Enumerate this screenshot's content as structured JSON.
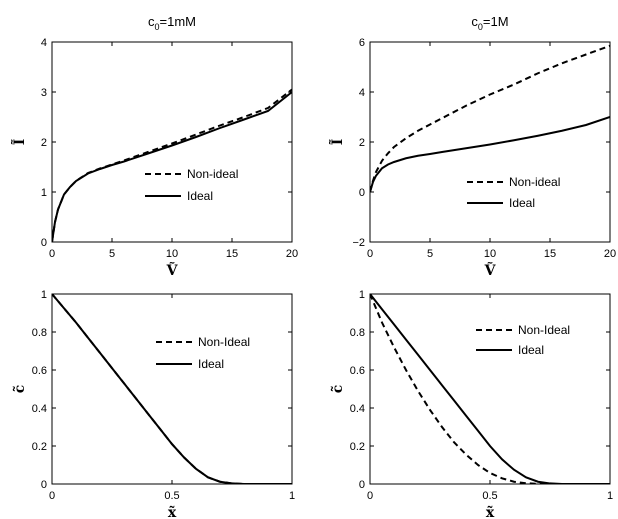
{
  "chart_data": [
    {
      "type": "line",
      "title": "c",
      "title_sub": "0",
      "title_suffix": "=1mM",
      "xlabel": "Ṽ",
      "ylabel": "Ĩ",
      "xlim": [
        0,
        20
      ],
      "ylim": [
        0,
        4
      ],
      "xticks": [
        "0",
        "5",
        "10",
        "15",
        "20"
      ],
      "yticks": [
        "0",
        "1",
        "2",
        "3",
        "4"
      ],
      "xtick_values": [
        0,
        5,
        10,
        15,
        20
      ],
      "ytick_values": [
        0,
        1,
        2,
        3,
        4
      ],
      "legend_position": "lower-right",
      "series": [
        {
          "name": "Non-ideal",
          "style": "dashed",
          "x": [
            0,
            0.25,
            0.5,
            1,
            1.5,
            2,
            3,
            4,
            5,
            6,
            8,
            10,
            12,
            14,
            16,
            18,
            20
          ],
          "y": [
            0,
            0.4,
            0.65,
            0.95,
            1.1,
            1.22,
            1.38,
            1.47,
            1.55,
            1.63,
            1.8,
            1.97,
            2.15,
            2.33,
            2.5,
            2.68,
            3.05
          ]
        },
        {
          "name": "Ideal",
          "style": "solid",
          "x": [
            0,
            0.25,
            0.5,
            1,
            1.5,
            2,
            3,
            4,
            5,
            6,
            8,
            10,
            12,
            14,
            16,
            18,
            20
          ],
          "y": [
            0,
            0.4,
            0.65,
            0.95,
            1.1,
            1.22,
            1.37,
            1.46,
            1.54,
            1.61,
            1.77,
            1.93,
            2.1,
            2.28,
            2.45,
            2.62,
            3.0
          ]
        }
      ]
    },
    {
      "type": "line",
      "title": "c",
      "title_sub": "0",
      "title_suffix": "=1M",
      "xlabel": "Ṽ",
      "ylabel": "Ĩ",
      "xlim": [
        0,
        20
      ],
      "ylim": [
        -2,
        6
      ],
      "xticks": [
        "0",
        "5",
        "10",
        "15",
        "20"
      ],
      "yticks": [
        "−2",
        "0",
        "2",
        "4",
        "6"
      ],
      "xtick_values": [
        0,
        5,
        10,
        15,
        20
      ],
      "ytick_values": [
        -2,
        0,
        2,
        4,
        6
      ],
      "legend_position": "lower-right",
      "series": [
        {
          "name": "Non-ideal",
          "style": "dashed",
          "x": [
            0,
            0.25,
            0.5,
            1,
            1.5,
            2,
            3,
            4,
            5,
            6,
            8,
            10,
            12,
            14,
            16,
            18,
            20
          ],
          "y": [
            0,
            0.45,
            0.8,
            1.25,
            1.55,
            1.8,
            2.15,
            2.45,
            2.7,
            2.95,
            3.45,
            3.9,
            4.3,
            4.75,
            5.15,
            5.5,
            5.85
          ]
        },
        {
          "name": "Ideal",
          "style": "solid",
          "x": [
            0,
            0.25,
            0.5,
            1,
            1.5,
            2,
            3,
            4,
            5,
            6,
            8,
            10,
            12,
            14,
            16,
            18,
            20
          ],
          "y": [
            0,
            0.4,
            0.65,
            0.95,
            1.1,
            1.2,
            1.35,
            1.45,
            1.52,
            1.6,
            1.75,
            1.9,
            2.07,
            2.25,
            2.45,
            2.68,
            3.0
          ]
        }
      ]
    },
    {
      "type": "line",
      "title": "",
      "xlabel": "x̃",
      "ylabel": "c̃",
      "xlim": [
        0,
        1
      ],
      "ylim": [
        0,
        1
      ],
      "xticks": [
        "0",
        "0.5",
        "1"
      ],
      "yticks": [
        "0",
        "0.2",
        "0.4",
        "0.6",
        "0.8",
        "1"
      ],
      "xtick_values": [
        0,
        0.5,
        1
      ],
      "ytick_values": [
        0,
        0.2,
        0.4,
        0.6,
        0.8,
        1
      ],
      "legend_position": "top-right",
      "series": [
        {
          "name": "Non-Ideal",
          "style": "dashed",
          "x": [
            0,
            0.05,
            0.1,
            0.15,
            0.2,
            0.25,
            0.3,
            0.35,
            0.4,
            0.45,
            0.5,
            0.55,
            0.6,
            0.65,
            0.7,
            0.75,
            0.8,
            0.9,
            1
          ],
          "y": [
            1,
            0.925,
            0.85,
            0.77,
            0.69,
            0.61,
            0.53,
            0.45,
            0.37,
            0.29,
            0.21,
            0.14,
            0.08,
            0.035,
            0.012,
            0.003,
            0,
            0,
            0
          ]
        },
        {
          "name": "Ideal",
          "style": "solid",
          "x": [
            0,
            0.05,
            0.1,
            0.15,
            0.2,
            0.25,
            0.3,
            0.35,
            0.4,
            0.45,
            0.5,
            0.55,
            0.6,
            0.65,
            0.7,
            0.75,
            0.8,
            0.9,
            1
          ],
          "y": [
            1,
            0.925,
            0.85,
            0.77,
            0.69,
            0.61,
            0.53,
            0.45,
            0.37,
            0.29,
            0.21,
            0.14,
            0.08,
            0.035,
            0.012,
            0.003,
            0,
            0,
            0
          ]
        }
      ]
    },
    {
      "type": "line",
      "title": "",
      "xlabel": "x̃",
      "ylabel": "c̃",
      "xlim": [
        0,
        1
      ],
      "ylim": [
        0,
        1
      ],
      "xticks": [
        "0",
        "0.5",
        "1"
      ],
      "yticks": [
        "0",
        "0.2",
        "0.4",
        "0.6",
        "0.8",
        "1"
      ],
      "xtick_values": [
        0,
        0.5,
        1
      ],
      "ytick_values": [
        0,
        0.2,
        0.4,
        0.6,
        0.8,
        1
      ],
      "legend_position": "top-right",
      "series": [
        {
          "name": "Non-Ideal",
          "style": "dashed",
          "x": [
            0,
            0.05,
            0.1,
            0.15,
            0.2,
            0.25,
            0.3,
            0.35,
            0.4,
            0.45,
            0.5,
            0.55,
            0.6,
            0.65,
            0.7,
            0.8,
            1
          ],
          "y": [
            1,
            0.85,
            0.72,
            0.6,
            0.49,
            0.39,
            0.3,
            0.22,
            0.155,
            0.1,
            0.058,
            0.03,
            0.012,
            0.004,
            0.001,
            0,
            0
          ]
        },
        {
          "name": "Ideal",
          "style": "solid",
          "x": [
            0,
            0.05,
            0.1,
            0.15,
            0.2,
            0.25,
            0.3,
            0.35,
            0.4,
            0.45,
            0.5,
            0.55,
            0.6,
            0.65,
            0.7,
            0.75,
            0.8,
            0.9,
            1
          ],
          "y": [
            1,
            0.92,
            0.84,
            0.76,
            0.68,
            0.6,
            0.52,
            0.44,
            0.36,
            0.28,
            0.2,
            0.13,
            0.075,
            0.035,
            0.012,
            0.003,
            0,
            0,
            0
          ]
        }
      ]
    }
  ]
}
